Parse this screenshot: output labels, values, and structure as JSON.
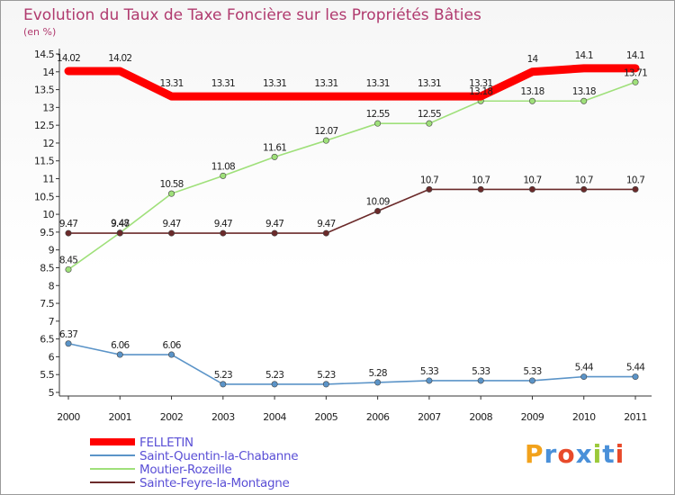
{
  "chart_data": {
    "type": "line",
    "title": "Evolution du Taux de Taxe Foncière sur les Propriétés Bâties",
    "subtitle": "(en %)",
    "xlabel": "",
    "ylabel": "",
    "x": [
      2000,
      2001,
      2002,
      2003,
      2004,
      2005,
      2006,
      2007,
      2008,
      2009,
      2010,
      2011
    ],
    "yticks": [
      5,
      5.5,
      6,
      6.5,
      7,
      7.5,
      8,
      8.5,
      9,
      9.5,
      10,
      10.5,
      11,
      11.5,
      12,
      12.5,
      13,
      13.5,
      14,
      14.5
    ],
    "ylim": [
      5,
      14.5
    ],
    "grid": false,
    "legend_position": "bottom-left",
    "series": [
      {
        "name": "FELLETIN",
        "color": "#ff0000",
        "values": [
          14.02,
          14.02,
          13.31,
          13.31,
          13.31,
          13.31,
          13.31,
          13.31,
          13.31,
          14,
          14.1,
          14.1
        ],
        "labels": [
          "14.02",
          "14.02",
          "13.31",
          "13.31",
          "13.31",
          "13.31",
          "13.31",
          "13.31",
          "13.31",
          "14",
          "14.1",
          "14.1"
        ]
      },
      {
        "name": "Saint-Quentin-la-Chabanne",
        "color": "#5b94c8",
        "values": [
          6.37,
          6.06,
          6.06,
          5.23,
          5.23,
          5.23,
          5.28,
          5.33,
          5.33,
          5.33,
          5.44,
          5.44
        ],
        "labels": [
          "6.37",
          "6.06",
          "6.06",
          "5.23",
          "5.23",
          "5.23",
          "5.28",
          "5.33",
          "5.33",
          "5.33",
          "5.44",
          "5.44"
        ]
      },
      {
        "name": "Moutier-Rozeille",
        "color": "#9fe07a",
        "values": [
          8.45,
          9.48,
          10.58,
          11.08,
          11.61,
          12.07,
          12.55,
          12.55,
          13.18,
          13.18,
          13.18,
          13.71
        ],
        "labels": [
          "8.45",
          "9.48",
          "10.58",
          "11.08",
          "11.61",
          "12.07",
          "12.55",
          "12.55",
          "13.18",
          "13.18",
          "13.18",
          "13.71"
        ]
      },
      {
        "name": "Sainte-Feyre-la-Montagne",
        "color": "#6b2a2a",
        "values": [
          9.47,
          9.47,
          9.47,
          9.47,
          9.47,
          9.47,
          10.09,
          10.7,
          10.7,
          10.7,
          10.7,
          10.7
        ],
        "labels": [
          "9.47",
          "9.47",
          "9.47",
          "9.47",
          "9.47",
          "9.47",
          "10.09",
          "10.7",
          "10.7",
          "10.7",
          "10.7",
          "10.7"
        ]
      }
    ]
  },
  "logo": {
    "text": "Proxiti",
    "colors": [
      "#f2a21c",
      "#4a90d9",
      "#e84a2a",
      "#4a90d9",
      "#9bc93a",
      "#4a90d9",
      "#e84a2a"
    ]
  }
}
